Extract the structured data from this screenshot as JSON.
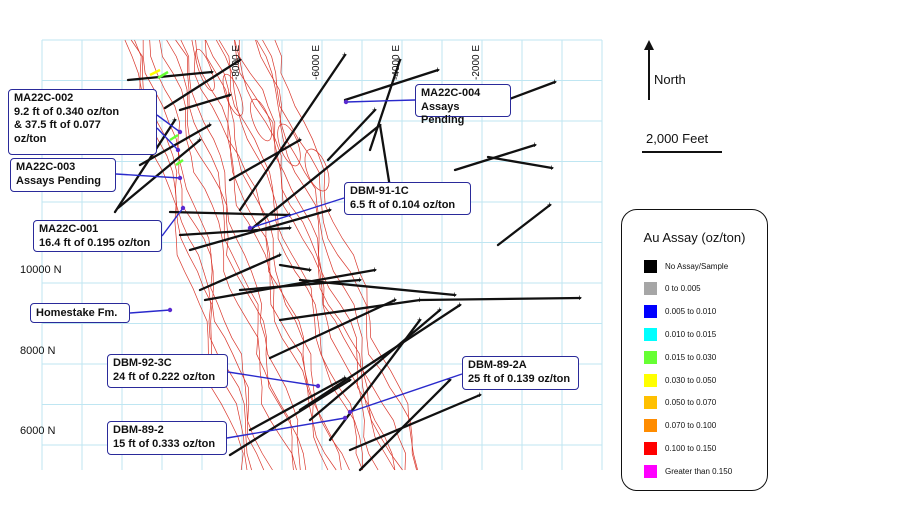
{
  "map": {
    "easting_labels": [
      "-8000 E",
      "-6000 E",
      "-4000 E",
      "-2000 E"
    ],
    "northing_labels": [
      "10000 N",
      "8000 N",
      "6000 N"
    ],
    "north_arrow": {
      "label": "North",
      "icon": "north-arrow-icon"
    },
    "scale_bar": {
      "label": "2,000 Feet"
    },
    "colors": {
      "grid": "#bfe6f2",
      "formation": "#d9362b",
      "drillhole": "#111111",
      "callout_border": "#2a2a9a",
      "leader": "#2a2acc"
    }
  },
  "callouts": [
    {
      "id": "ma22c-002",
      "text": "MA22C-002\n9.2 ft of 0.340 oz/ton\n& 37.5 ft of 0.077\noz/ton"
    },
    {
      "id": "ma22c-003",
      "text": "MA22C-003\nAssays Pending"
    },
    {
      "id": "ma22c-004",
      "text": "MA22C-004\nAssays Pending"
    },
    {
      "id": "dbm-91-1c",
      "text": "DBM-91-1C\n6.5 ft of 0.104 oz/ton"
    },
    {
      "id": "ma22c-001",
      "text": "MA22C-001\n16.4 ft of 0.195 oz/ton"
    },
    {
      "id": "homestake",
      "text": "Homestake Fm."
    },
    {
      "id": "dbm-92-3c",
      "text": "DBM-92-3C\n24 ft of 0.222 oz/ton"
    },
    {
      "id": "dbm-89-2a",
      "text": "DBM-89-2A\n25 ft of 0.139 oz/ton"
    },
    {
      "id": "dbm-89-2",
      "text": "DBM-89-2\n15 ft of 0.333 oz/ton"
    }
  ],
  "legend": {
    "title": "Au Assay (oz/ton)",
    "items": [
      {
        "label": "No Assay/Sample",
        "color": "#000000"
      },
      {
        "label": "0 to 0.005",
        "color": "#a6a6a6"
      },
      {
        "label": "0.005  to 0.010",
        "color": "#0000ff"
      },
      {
        "label": "0.010  to 0.015",
        "color": "#00ffff"
      },
      {
        "label": "0.015  to 0.030",
        "color": "#66ff33"
      },
      {
        "label": "0.030  to 0.050",
        "color": "#ffff00"
      },
      {
        "label": "0.050  to 0.070",
        "color": "#ffc000"
      },
      {
        "label": "0.070  to 0.100",
        "color": "#ff8c00"
      },
      {
        "label": "0.100  to 0.150",
        "color": "#ff0000"
      },
      {
        "label": "Greater than 0.150",
        "color": "#ff00ff"
      }
    ]
  }
}
